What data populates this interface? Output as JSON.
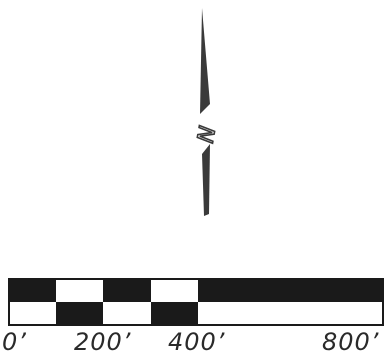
{
  "north_arrow": {
    "letter": "N",
    "icon": "north-arrow-icon",
    "color": "#3a3a3a"
  },
  "scale_bar": {
    "labels": [
      "0’",
      "200’",
      "400’",
      "800’"
    ],
    "fill_color": "#1a1a1a",
    "background_color": "#ffffff"
  }
}
